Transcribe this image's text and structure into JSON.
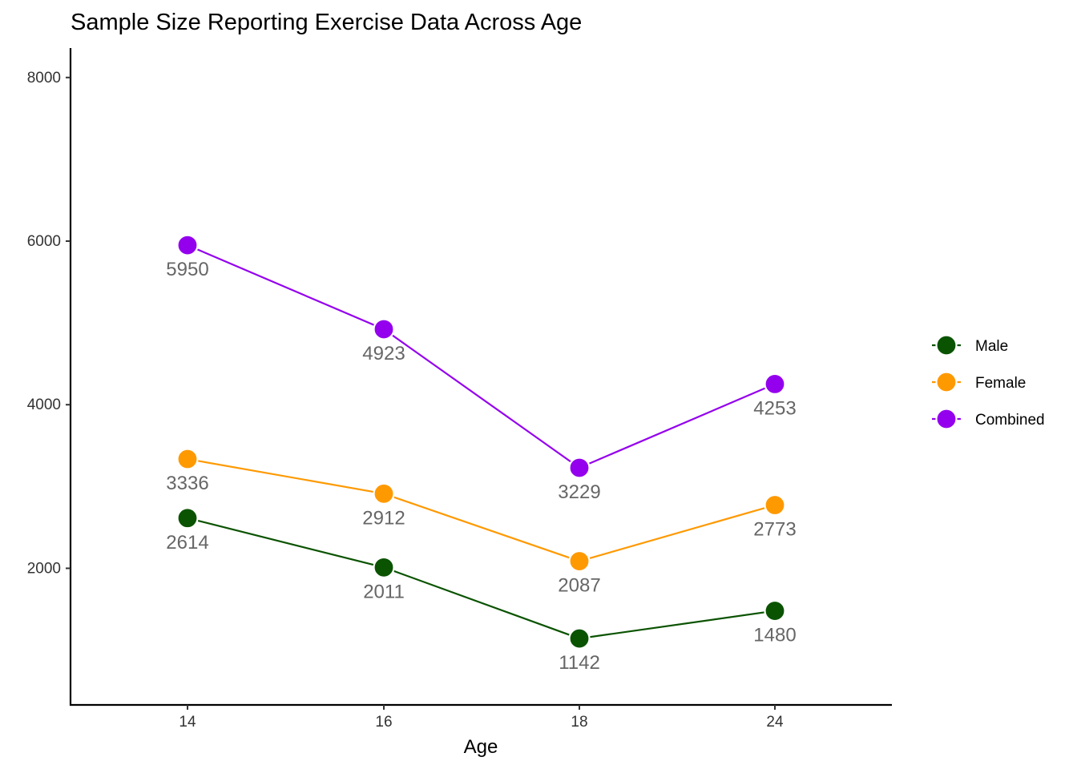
{
  "chart_data": {
    "type": "line",
    "title": "Sample Size Reporting Exercise Data Across Age",
    "xlabel": "Age",
    "ylabel": "",
    "categories": [
      "14",
      "16",
      "18",
      "24"
    ],
    "y_ticks": [
      2000,
      4000,
      6000,
      8000
    ],
    "y_tick_labels": [
      "2000",
      "4000",
      "6000",
      "8000"
    ],
    "ylim": [
      330,
      8360
    ],
    "grid": false,
    "legend_position": "right",
    "series": [
      {
        "name": "Male",
        "color": "#0A5300",
        "values": [
          2614,
          2011,
          1142,
          1480
        ],
        "labels": [
          "2614",
          "2011",
          "1142",
          "1480"
        ]
      },
      {
        "name": "Female",
        "color": "#FF9900",
        "values": [
          3336,
          2912,
          2087,
          2773
        ],
        "labels": [
          "3336",
          "2912",
          "2087",
          "2773"
        ]
      },
      {
        "name": "Combined",
        "color": "#9400EE",
        "values": [
          5950,
          4923,
          3229,
          4253
        ],
        "labels": [
          "5950",
          "4923",
          "3229",
          "4253"
        ]
      }
    ]
  }
}
